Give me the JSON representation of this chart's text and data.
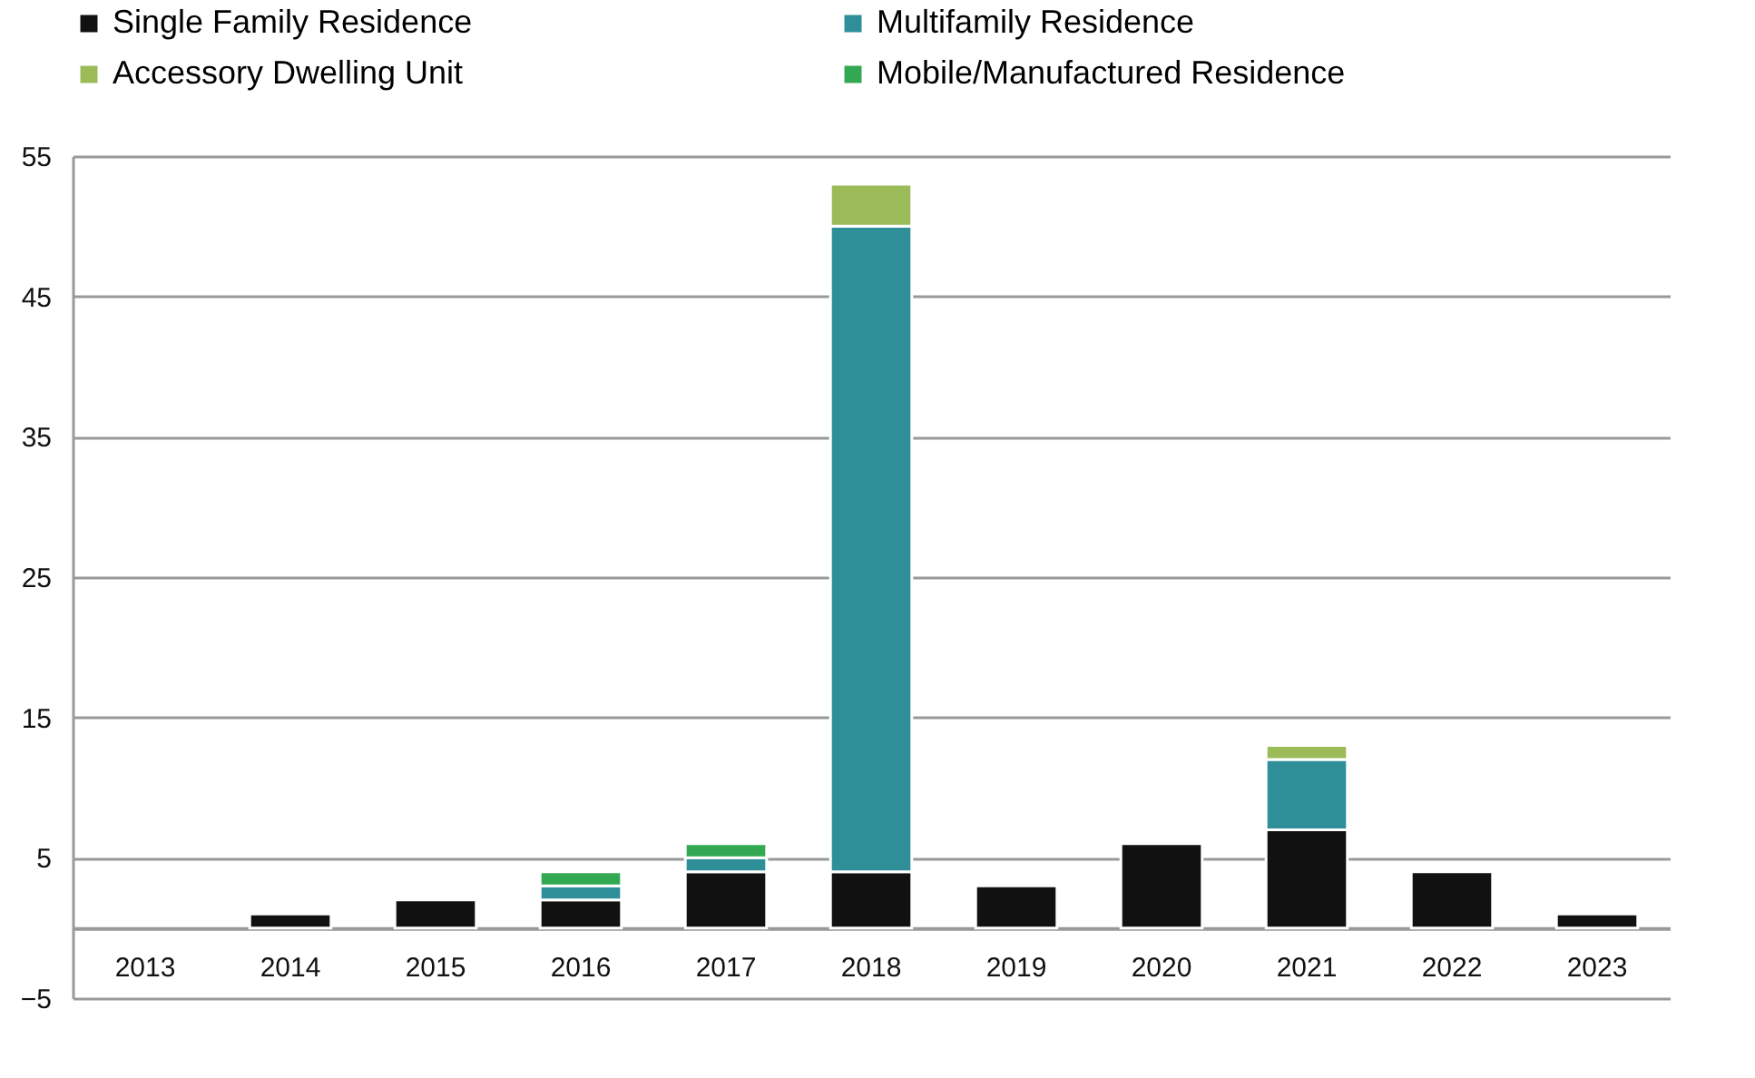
{
  "chart_data": {
    "type": "bar",
    "stacked": true,
    "categories": [
      "2013",
      "2014",
      "2015",
      "2016",
      "2017",
      "2018",
      "2019",
      "2020",
      "2021",
      "2022",
      "2023"
    ],
    "series": [
      {
        "name": "Single Family Residence",
        "color": "#111111",
        "values": [
          null,
          1,
          2,
          2,
          4,
          4,
          3,
          6,
          7,
          4,
          1
        ]
      },
      {
        "name": "Multifamily Residence",
        "color": "#2e8f98",
        "values": [
          null,
          null,
          null,
          1,
          1,
          46,
          null,
          null,
          5,
          null,
          null
        ]
      },
      {
        "name": "Accessory Dwelling Unit",
        "color": "#9bbb59",
        "values": [
          null,
          null,
          null,
          null,
          null,
          3,
          null,
          null,
          1,
          null,
          null
        ]
      },
      {
        "name": "Mobile/Manufactured Residence",
        "color": "#33a852",
        "values": [
          null,
          null,
          null,
          1,
          1,
          null,
          null,
          null,
          null,
          null,
          null
        ]
      }
    ],
    "ylim": [
      -5,
      55
    ],
    "yticks": [
      -5,
      5,
      15,
      25,
      35,
      45,
      55
    ],
    "grid": "y",
    "legend": "top"
  }
}
